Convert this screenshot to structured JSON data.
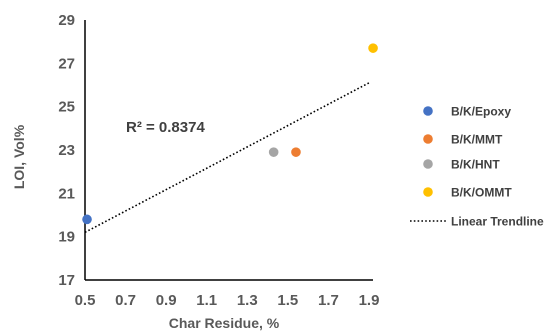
{
  "chart_data": {
    "type": "scatter",
    "xlabel": "Char Residue, %",
    "ylabel": "LOI, Vol%",
    "xlim": [
      0.5,
      1.9
    ],
    "ylim": [
      17,
      29
    ],
    "x_ticks": [
      "0.5",
      "0.7",
      "0.9",
      "1.1",
      "1.3",
      "1.5",
      "1.7",
      "1.9"
    ],
    "y_ticks": [
      "17",
      "19",
      "21",
      "23",
      "25",
      "27",
      "29"
    ],
    "grid": false,
    "legend_position": "right",
    "series": [
      {
        "name": "B/K/Epoxy",
        "color": "#4472C4",
        "points": [
          {
            "x": 0.51,
            "y": 19.8
          }
        ]
      },
      {
        "name": "B/K/MMT",
        "color": "#ED7D31",
        "points": [
          {
            "x": 1.54,
            "y": 22.9
          }
        ]
      },
      {
        "name": "B/K/HNT",
        "color": "#A5A5A5",
        "points": [
          {
            "x": 1.43,
            "y": 22.9
          }
        ]
      },
      {
        "name": "B/K/OMMT",
        "color": "#FFC000",
        "points": [
          {
            "x": 1.92,
            "y": 27.7
          }
        ]
      }
    ],
    "trendline": {
      "name": "Linear Trendline",
      "start": {
        "x": 0.5,
        "y": 19.2
      },
      "end": {
        "x": 1.9,
        "y": 26.1
      },
      "style": "dotted",
      "color": "#000000"
    },
    "annotations": [
      {
        "text": "R² = 0.8374"
      }
    ]
  }
}
